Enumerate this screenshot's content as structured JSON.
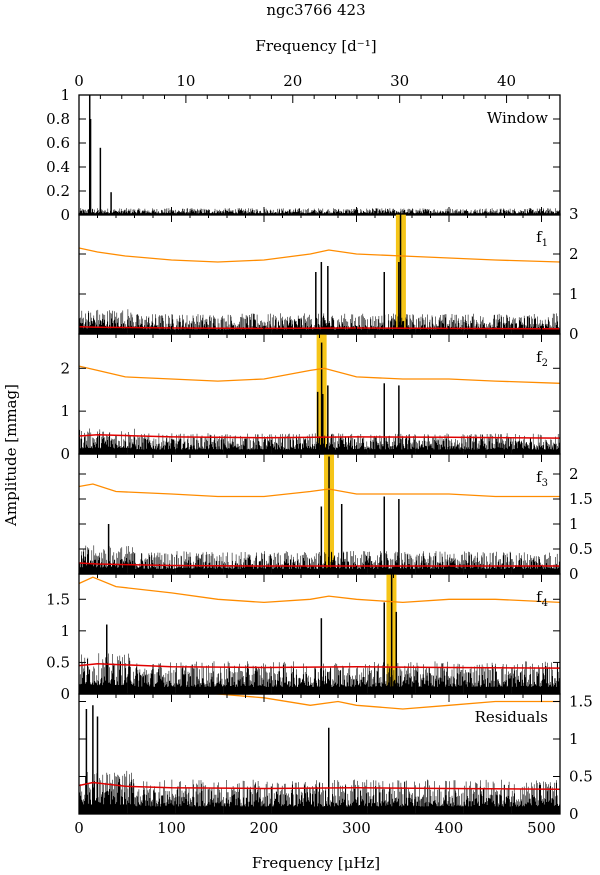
{
  "chart_data": {
    "type": "line",
    "title": "ngc3766 423",
    "top_axis": {
      "label": "Frequency [d⁻¹]",
      "range": [
        0,
        45
      ],
      "ticks": [
        0,
        10,
        20,
        30,
        40
      ]
    },
    "xlabel": "Frequency [μHz]",
    "xlim": [
      0,
      520
    ],
    "xticks": [
      0,
      100,
      200,
      300,
      400,
      500
    ],
    "ylabel": "Amplitude [mmag]",
    "grid": false,
    "panels": [
      {
        "label": "Window",
        "label_sub": "",
        "ylim": [
          0,
          1
        ],
        "yticks": [
          0,
          0.2,
          0.4,
          0.6,
          0.8,
          1
        ],
        "axis_side": "left",
        "noise_level": 0.05,
        "peaks": [
          {
            "freq": 11.6,
            "amp": 1.0
          },
          {
            "freq": 12.5,
            "amp": 0.8
          },
          {
            "freq": 23.1,
            "amp": 0.56
          },
          {
            "freq": 34.7,
            "amp": 0.19
          }
        ],
        "highlight_freq": null,
        "threshold_curve": null,
        "noise_curve": null
      },
      {
        "label": "f",
        "label_sub": "1",
        "ylim": [
          0,
          3
        ],
        "yticks": [
          0,
          1,
          2,
          3
        ],
        "axis_side": "right",
        "noise_level": 0.45,
        "peaks": [
          {
            "freq": 347.6,
            "amp": 3.0
          },
          {
            "freq": 345.8,
            "amp": 1.8
          },
          {
            "freq": 262.0,
            "amp": 1.8
          },
          {
            "freq": 269.0,
            "amp": 1.7
          },
          {
            "freq": 256.0,
            "amp": 1.55
          },
          {
            "freq": 330.0,
            "amp": 1.55
          }
        ],
        "highlight_freq": 348.0,
        "threshold_curve": [
          [
            0,
            2.15
          ],
          [
            20,
            2.05
          ],
          [
            50,
            1.95
          ],
          [
            100,
            1.85
          ],
          [
            150,
            1.8
          ],
          [
            200,
            1.85
          ],
          [
            250,
            2.0
          ],
          [
            270,
            2.1
          ],
          [
            300,
            2.0
          ],
          [
            350,
            1.95
          ],
          [
            400,
            1.9
          ],
          [
            450,
            1.85
          ],
          [
            520,
            1.8
          ]
        ],
        "noise_curve": [
          [
            0,
            0.18
          ],
          [
            20,
            0.17
          ],
          [
            100,
            0.15
          ],
          [
            200,
            0.14
          ],
          [
            300,
            0.15
          ],
          [
            400,
            0.14
          ],
          [
            520,
            0.13
          ]
        ]
      },
      {
        "label": "f",
        "label_sub": "2",
        "ylim": [
          0,
          2.8
        ],
        "yticks": [
          0,
          1,
          2
        ],
        "axis_side": "left",
        "noise_level": 0.42,
        "peaks": [
          {
            "freq": 262.3,
            "amp": 2.6
          },
          {
            "freq": 258.0,
            "amp": 1.45
          },
          {
            "freq": 269.0,
            "amp": 1.6
          },
          {
            "freq": 330.0,
            "amp": 1.65
          },
          {
            "freq": 345.8,
            "amp": 1.6
          },
          {
            "freq": 263.5,
            "amp": 1.4
          }
        ],
        "highlight_freq": 262.3,
        "threshold_curve": [
          [
            0,
            2.05
          ],
          [
            20,
            1.95
          ],
          [
            50,
            1.8
          ],
          [
            100,
            1.75
          ],
          [
            150,
            1.7
          ],
          [
            200,
            1.75
          ],
          [
            250,
            1.95
          ],
          [
            265,
            2.0
          ],
          [
            300,
            1.8
          ],
          [
            350,
            1.75
          ],
          [
            400,
            1.75
          ],
          [
            450,
            1.7
          ],
          [
            520,
            1.65
          ]
        ],
        "noise_curve": [
          [
            0,
            0.42
          ],
          [
            20,
            0.45
          ],
          [
            100,
            0.4
          ],
          [
            200,
            0.38
          ],
          [
            300,
            0.4
          ],
          [
            400,
            0.39
          ],
          [
            520,
            0.37
          ]
        ]
      },
      {
        "label": "f",
        "label_sub": "3",
        "ylim": [
          0,
          2.4
        ],
        "yticks": [
          0,
          0.5,
          1,
          1.5,
          2
        ],
        "axis_side": "right",
        "noise_level": 0.4,
        "peaks": [
          {
            "freq": 270.3,
            "amp": 2.35
          },
          {
            "freq": 262.0,
            "amp": 1.35
          },
          {
            "freq": 284.0,
            "amp": 1.4
          },
          {
            "freq": 330.0,
            "amp": 1.55
          },
          {
            "freq": 345.8,
            "amp": 1.5
          },
          {
            "freq": 32.0,
            "amp": 1.0
          }
        ],
        "highlight_freq": 270.3,
        "threshold_curve": [
          [
            0,
            1.75
          ],
          [
            15,
            1.8
          ],
          [
            40,
            1.65
          ],
          [
            100,
            1.6
          ],
          [
            150,
            1.55
          ],
          [
            200,
            1.55
          ],
          [
            250,
            1.65
          ],
          [
            270,
            1.7
          ],
          [
            300,
            1.6
          ],
          [
            350,
            1.6
          ],
          [
            400,
            1.6
          ],
          [
            450,
            1.55
          ],
          [
            520,
            1.55
          ]
        ],
        "noise_curve": [
          [
            0,
            0.22
          ],
          [
            20,
            0.2
          ],
          [
            100,
            0.17
          ],
          [
            200,
            0.16
          ],
          [
            300,
            0.16
          ],
          [
            400,
            0.16
          ],
          [
            520,
            0.16
          ]
        ]
      },
      {
        "label": "f",
        "label_sub": "4",
        "ylim": [
          0,
          1.9
        ],
        "yticks": [
          0,
          0.5,
          1,
          1.5
        ],
        "axis_side": "left",
        "noise_level": 0.45,
        "peaks": [
          {
            "freq": 338.0,
            "amp": 1.9
          },
          {
            "freq": 330.0,
            "amp": 1.45
          },
          {
            "freq": 343.0,
            "amp": 1.3
          },
          {
            "freq": 262.0,
            "amp": 1.2
          },
          {
            "freq": 30.0,
            "amp": 1.1
          }
        ],
        "highlight_freq": 337.8,
        "threshold_curve": [
          [
            0,
            1.75
          ],
          [
            15,
            1.85
          ],
          [
            40,
            1.7
          ],
          [
            100,
            1.6
          ],
          [
            150,
            1.5
          ],
          [
            200,
            1.45
          ],
          [
            250,
            1.5
          ],
          [
            270,
            1.55
          ],
          [
            300,
            1.5
          ],
          [
            350,
            1.45
          ],
          [
            400,
            1.5
          ],
          [
            450,
            1.5
          ],
          [
            520,
            1.45
          ]
        ],
        "noise_curve": [
          [
            0,
            0.45
          ],
          [
            20,
            0.48
          ],
          [
            100,
            0.43
          ],
          [
            200,
            0.42
          ],
          [
            300,
            0.43
          ],
          [
            400,
            0.42
          ],
          [
            520,
            0.41
          ]
        ]
      },
      {
        "label": "Residuals",
        "label_sub": "",
        "ylim": [
          0,
          1.6
        ],
        "yticks": [
          0,
          0.5,
          1,
          1.5
        ],
        "axis_side": "right",
        "noise_level": 0.4,
        "peaks": [
          {
            "freq": 15.0,
            "amp": 1.45
          },
          {
            "freq": 20.0,
            "amp": 1.3
          },
          {
            "freq": 270.0,
            "amp": 1.15
          },
          {
            "freq": 8.0,
            "amp": 1.4
          }
        ],
        "highlight_freq": null,
        "threshold_curve": [
          [
            0,
            1.9
          ],
          [
            60,
            1.75
          ],
          [
            100,
            1.65
          ],
          [
            150,
            1.6
          ],
          [
            200,
            1.55
          ],
          [
            250,
            1.45
          ],
          [
            280,
            1.5
          ],
          [
            300,
            1.45
          ],
          [
            350,
            1.4
          ],
          [
            400,
            1.45
          ],
          [
            450,
            1.5
          ],
          [
            520,
            1.5
          ]
        ],
        "noise_curve": [
          [
            0,
            0.38
          ],
          [
            15,
            0.42
          ],
          [
            50,
            0.37
          ],
          [
            100,
            0.35
          ],
          [
            200,
            0.34
          ],
          [
            300,
            0.35
          ],
          [
            400,
            0.34
          ],
          [
            520,
            0.33
          ]
        ]
      }
    ],
    "colors": {
      "spectrum": "#000000",
      "threshold": "#ff8c00",
      "noise": "#e00000",
      "highlight": "#f5c518"
    }
  }
}
